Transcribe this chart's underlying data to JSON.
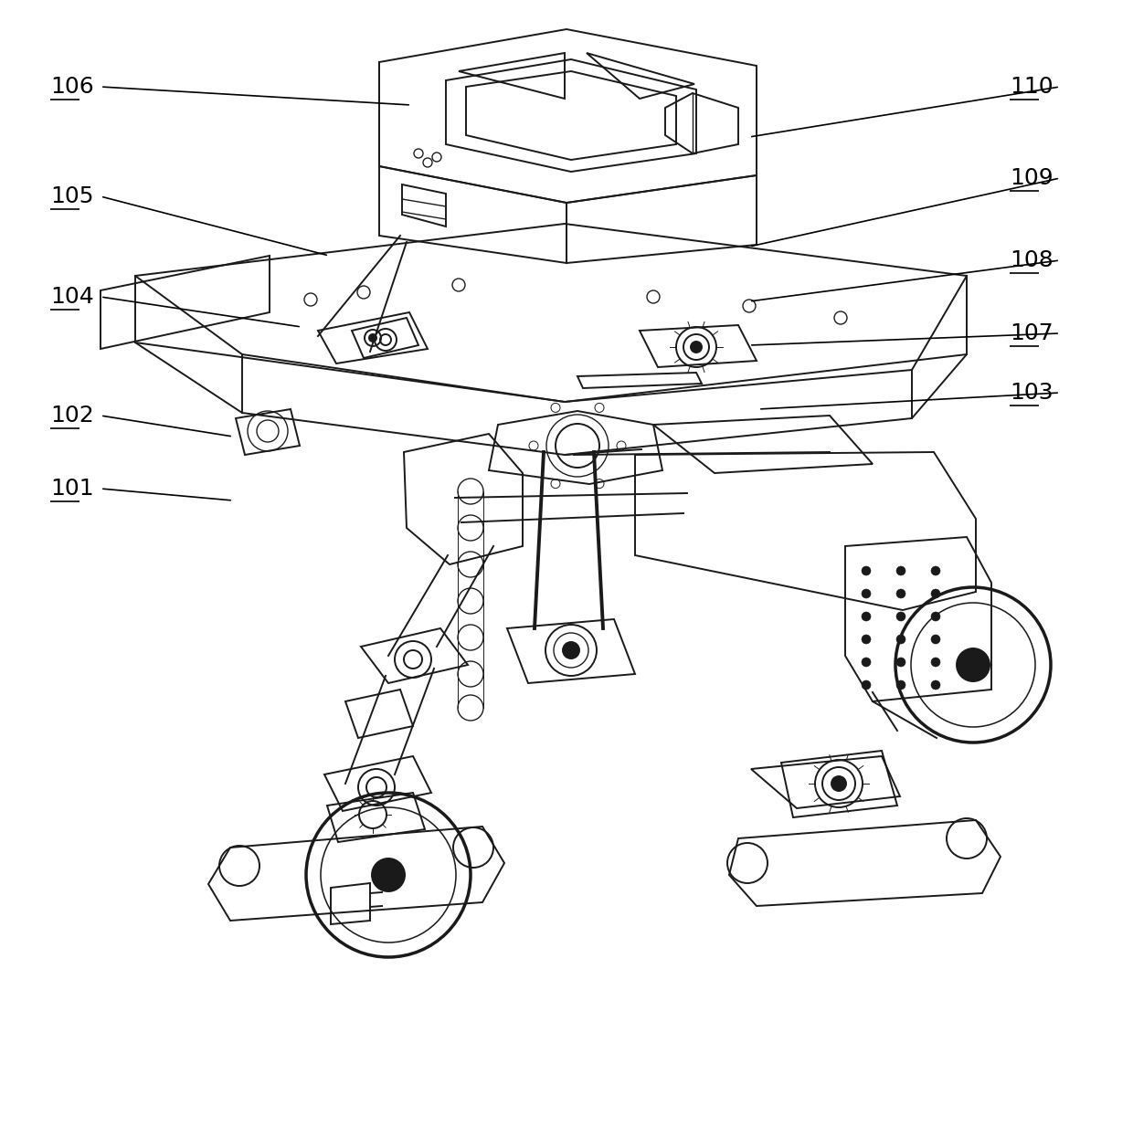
{
  "background_color": "#ffffff",
  "line_color": "#1a1a1a",
  "font_size": 18,
  "fig_width": 12.4,
  "fig_height": 12.34,
  "dpi": 100,
  "labels": {
    "106": {
      "tp": [
        55,
        95
      ],
      "ae": [
        450,
        115
      ]
    },
    "105": {
      "tp": [
        55,
        215
      ],
      "ae": [
        360,
        280
      ]
    },
    "104": {
      "tp": [
        55,
        325
      ],
      "ae": [
        330,
        358
      ]
    },
    "102": {
      "tp": [
        55,
        455
      ],
      "ae": [
        255,
        478
      ]
    },
    "101": {
      "tp": [
        55,
        535
      ],
      "ae": [
        255,
        548
      ]
    },
    "110": {
      "tp": [
        1105,
        95
      ],
      "ae": [
        820,
        150
      ]
    },
    "109": {
      "tp": [
        1105,
        195
      ],
      "ae": [
        820,
        270
      ]
    },
    "108": {
      "tp": [
        1105,
        285
      ],
      "ae": [
        820,
        330
      ]
    },
    "107": {
      "tp": [
        1105,
        365
      ],
      "ae": [
        820,
        378
      ]
    },
    "103": {
      "tp": [
        1105,
        430
      ],
      "ae": [
        830,
        448
      ]
    }
  }
}
